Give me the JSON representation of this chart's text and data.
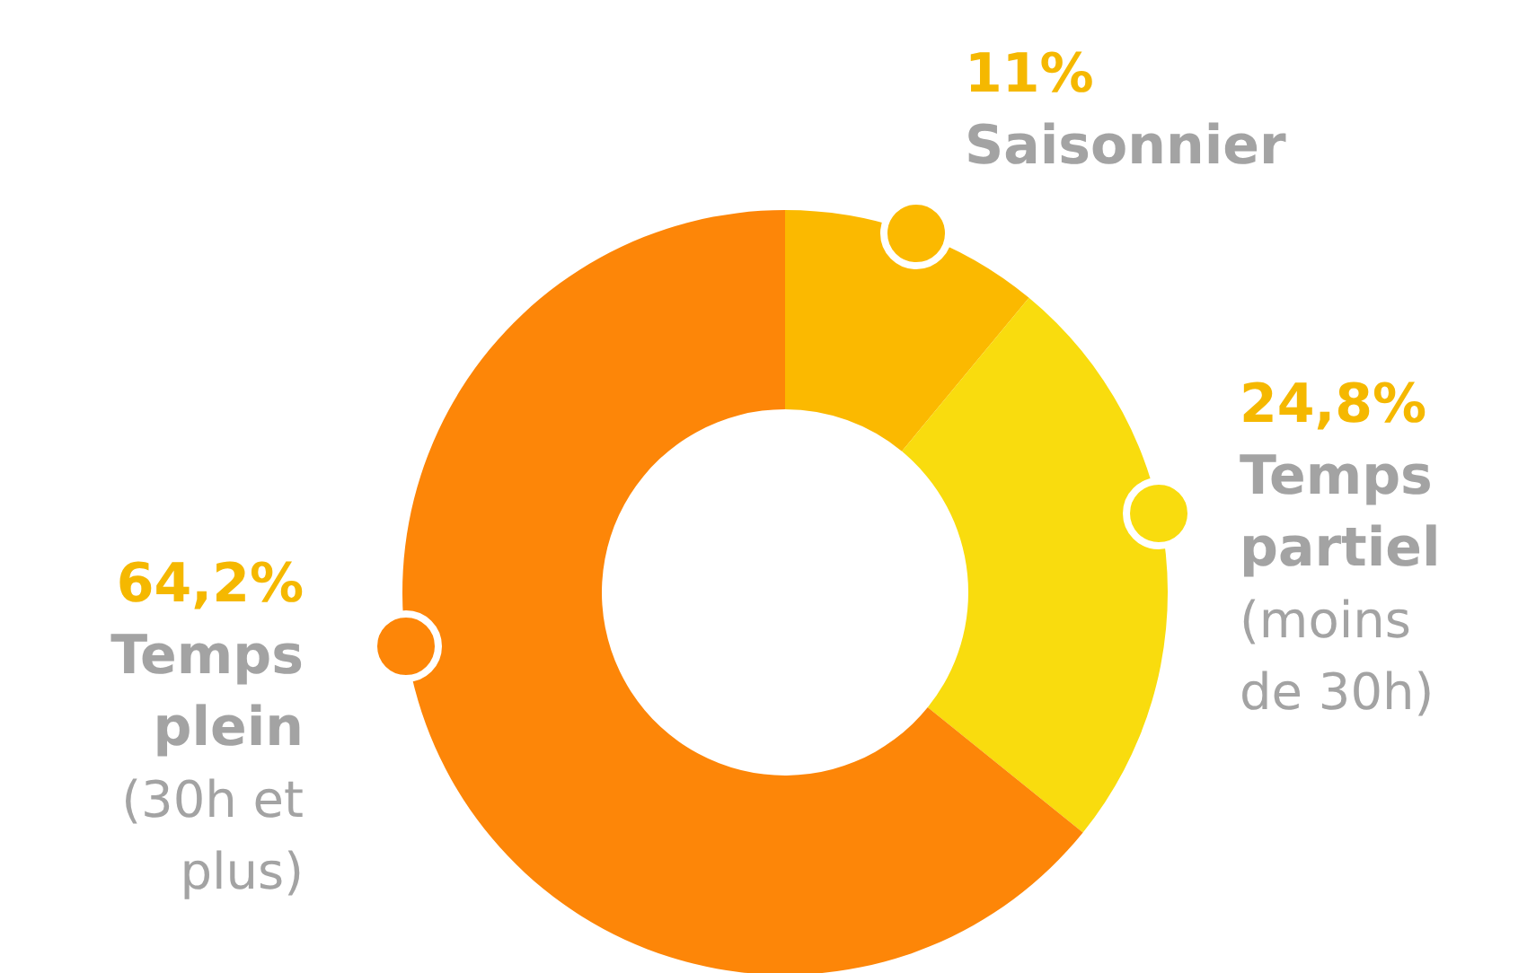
{
  "chart_data": {
    "type": "donut",
    "categories": [
      "Saisonnier",
      "Temps partiel (moins de 30h)",
      "Temps plein (30h et plus)"
    ],
    "values": [
      11,
      24.8,
      64.2
    ],
    "value_labels": [
      "11%",
      "24,8%",
      "64,2%"
    ],
    "colors": [
      "#fbb900",
      "#f9dc0e",
      "#fd8608"
    ]
  }
}
